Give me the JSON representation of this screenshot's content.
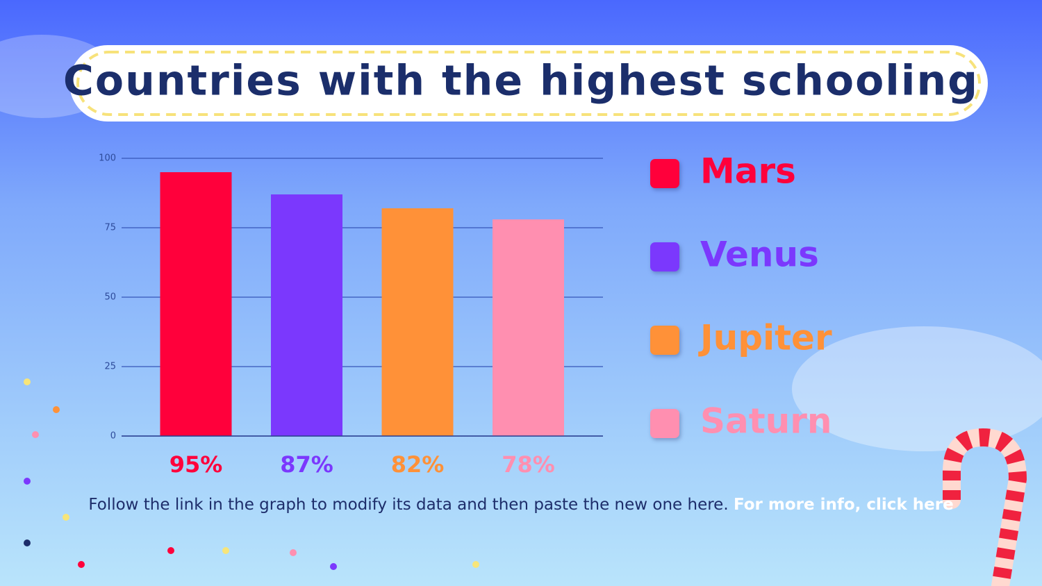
{
  "chart_data": {
    "type": "bar",
    "title": "Countries with the highest schooling",
    "categories": [
      "Mars",
      "Venus",
      "Jupiter",
      "Saturn"
    ],
    "values": [
      95,
      87,
      82,
      78
    ],
    "value_labels": [
      "95%",
      "87%",
      "82%",
      "78%"
    ],
    "colors": [
      "#ff003b",
      "#7b38fd",
      "#ff9138",
      "#ff8fb0"
    ],
    "ylim": [
      0,
      100
    ],
    "yticks": [
      0,
      25,
      50,
      75,
      100
    ],
    "grid": true,
    "legend": "right"
  },
  "footer": {
    "text": "Follow the link in the graph to modify its data and then paste the new one here.",
    "link": "For more info, click here"
  }
}
